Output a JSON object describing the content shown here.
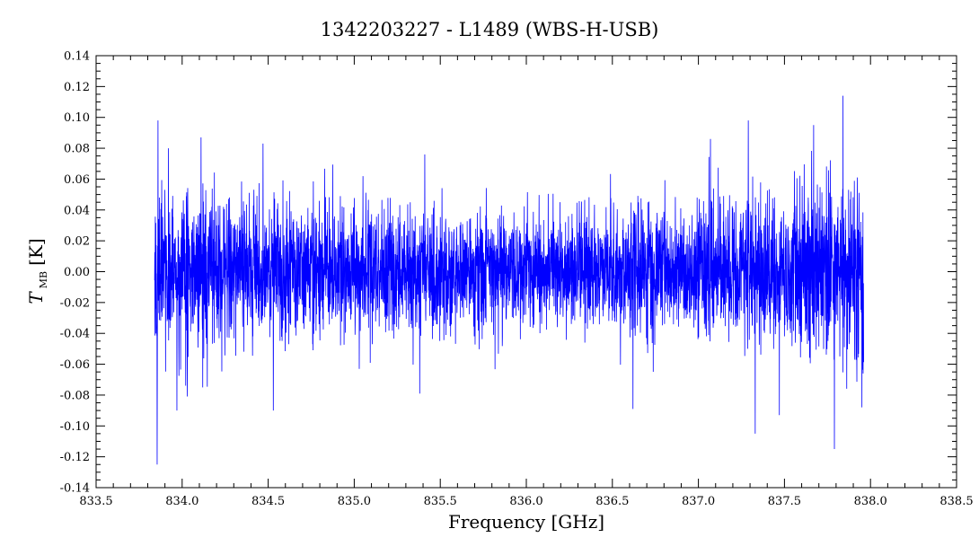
{
  "chart_data": {
    "type": "line",
    "title": "1342203227 - L1489 (WBS-H-USB)",
    "xlabel": "Frequency [GHz]",
    "ylabel_main": "T",
    "ylabel_sub": "MB",
    "ylabel_unit": "[K]",
    "xlim": [
      833.5,
      838.5
    ],
    "ylim": [
      -0.14,
      0.14
    ],
    "xticks": [
      "833.5",
      "834.0",
      "834.5",
      "835.0",
      "835.5",
      "836.0",
      "836.5",
      "837.0",
      "837.5",
      "838.0",
      "838.5"
    ],
    "yticks": [
      "0.14",
      "0.12",
      "0.10",
      "0.08",
      "0.06",
      "0.04",
      "0.02",
      "0.00",
      "-0.02",
      "-0.04",
      "-0.06",
      "-0.08",
      "-0.10",
      "-0.12",
      "-0.14"
    ],
    "grid": false,
    "series": [
      {
        "color": "#0000ff",
        "x_start": 833.84,
        "x_end": 837.96,
        "noise_std_edges": 0.028,
        "noise_std_center": 0.018,
        "spikes": [
          {
            "x": 833.86,
            "y": 0.098
          },
          {
            "x": 833.855,
            "y": -0.125
          },
          {
            "x": 833.92,
            "y": 0.08
          },
          {
            "x": 833.97,
            "y": -0.09
          },
          {
            "x": 834.11,
            "y": 0.087
          },
          {
            "x": 834.12,
            "y": -0.075
          },
          {
            "x": 834.53,
            "y": -0.09
          },
          {
            "x": 834.47,
            "y": 0.083
          },
          {
            "x": 835.38,
            "y": -0.079
          },
          {
            "x": 835.41,
            "y": 0.076
          },
          {
            "x": 836.62,
            "y": -0.089
          },
          {
            "x": 837.07,
            "y": 0.086
          },
          {
            "x": 837.29,
            "y": 0.098
          },
          {
            "x": 837.33,
            "y": -0.105
          },
          {
            "x": 837.47,
            "y": -0.093
          },
          {
            "x": 837.67,
            "y": 0.095
          },
          {
            "x": 837.84,
            "y": 0.114
          },
          {
            "x": 837.79,
            "y": -0.115
          },
          {
            "x": 837.95,
            "y": -0.088
          }
        ]
      }
    ]
  }
}
